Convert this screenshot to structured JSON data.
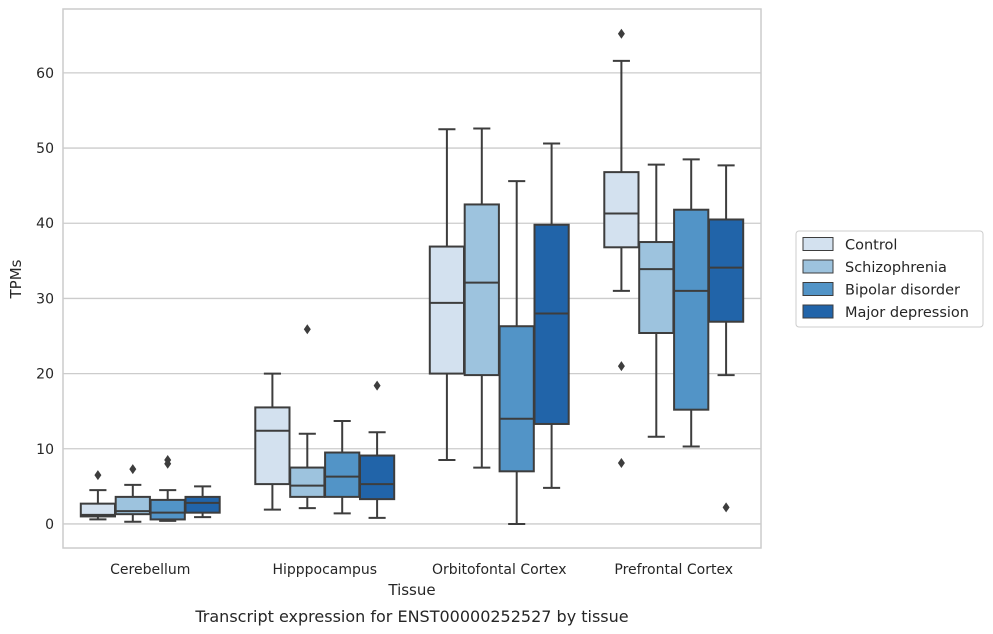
{
  "chart_data": {
    "type": "box",
    "title": "",
    "caption": "Transcript expression for ENST00000252527 by tissue",
    "xlabel": "Tissue",
    "ylabel": "TPMs",
    "ylim": [
      -3.2,
      68.5
    ],
    "yticks": [
      0,
      10,
      20,
      30,
      40,
      50,
      60
    ],
    "grid": "horizontal",
    "legend_position": "right-outside",
    "categories": [
      "Cerebellum",
      "Hipppocampus",
      "Orbitofontal Cortex",
      "Prefrontal Cortex"
    ],
    "series": [
      {
        "name": "Control",
        "color": "#d3e1ef",
        "boxes": [
          {
            "whisker_low": 0.6,
            "q1": 1.0,
            "median": 1.2,
            "q3": 2.7,
            "whisker_high": 4.5,
            "outliers": [
              6.5
            ]
          },
          {
            "whisker_low": 1.9,
            "q1": 5.3,
            "median": 12.4,
            "q3": 15.5,
            "whisker_high": 20.0,
            "outliers": []
          },
          {
            "whisker_low": 8.5,
            "q1": 20.0,
            "median": 29.4,
            "q3": 36.9,
            "whisker_high": 52.5,
            "outliers": []
          },
          {
            "whisker_low": 31.0,
            "q1": 36.8,
            "median": 41.3,
            "q3": 46.8,
            "whisker_high": 61.6,
            "outliers": [
              65.2,
              21.0,
              8.1
            ]
          }
        ]
      },
      {
        "name": "Schizophrenia",
        "color": "#9dc3de",
        "boxes": [
          {
            "whisker_low": 0.3,
            "q1": 1.3,
            "median": 1.7,
            "q3": 3.6,
            "whisker_high": 5.2,
            "outliers": [
              7.3
            ]
          },
          {
            "whisker_low": 2.1,
            "q1": 3.6,
            "median": 5.1,
            "q3": 7.5,
            "whisker_high": 12.0,
            "outliers": [
              25.9
            ]
          },
          {
            "whisker_low": 7.5,
            "q1": 19.8,
            "median": 32.1,
            "q3": 42.5,
            "whisker_high": 52.6,
            "outliers": []
          },
          {
            "whisker_low": 11.6,
            "q1": 25.4,
            "median": 33.9,
            "q3": 37.5,
            "whisker_high": 47.8,
            "outliers": []
          }
        ]
      },
      {
        "name": "Bipolar disorder",
        "color": "#5294c7",
        "boxes": [
          {
            "whisker_low": 0.4,
            "q1": 0.6,
            "median": 1.5,
            "q3": 3.2,
            "whisker_high": 4.5,
            "outliers": [
              8.0,
              8.5
            ]
          },
          {
            "whisker_low": 1.4,
            "q1": 3.6,
            "median": 6.3,
            "q3": 9.5,
            "whisker_high": 13.7,
            "outliers": []
          },
          {
            "whisker_low": 0.0,
            "q1": 7.0,
            "median": 14.0,
            "q3": 26.3,
            "whisker_high": 45.6,
            "outliers": []
          },
          {
            "whisker_low": 10.3,
            "q1": 15.2,
            "median": 31.0,
            "q3": 41.8,
            "whisker_high": 48.5,
            "outliers": []
          }
        ]
      },
      {
        "name": "Major depression",
        "color": "#2164a9",
        "boxes": [
          {
            "whisker_low": 0.9,
            "q1": 1.5,
            "median": 2.8,
            "q3": 3.6,
            "whisker_high": 5.0,
            "outliers": []
          },
          {
            "whisker_low": 0.8,
            "q1": 3.3,
            "median": 5.3,
            "q3": 9.1,
            "whisker_high": 12.2,
            "outliers": [
              18.4
            ]
          },
          {
            "whisker_low": 4.8,
            "q1": 13.3,
            "median": 28.0,
            "q3": 39.8,
            "whisker_high": 50.6,
            "outliers": []
          },
          {
            "whisker_low": 19.8,
            "q1": 26.9,
            "median": 34.1,
            "q3": 40.5,
            "whisker_high": 47.7,
            "outliers": [
              2.2
            ]
          }
        ]
      }
    ]
  }
}
